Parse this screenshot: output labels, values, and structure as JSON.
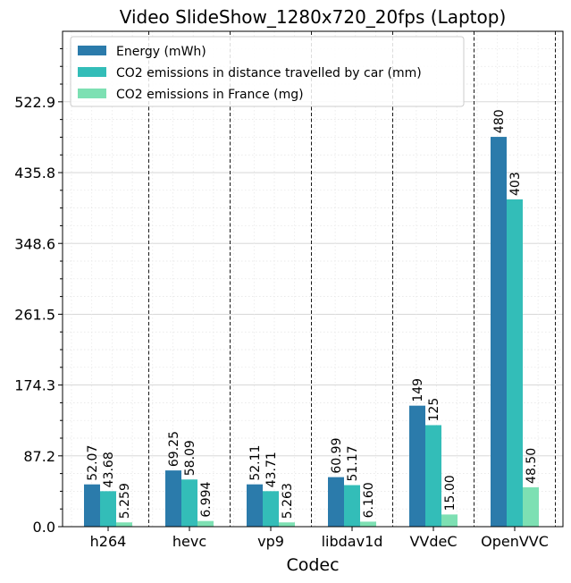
{
  "chart_data": {
    "type": "bar",
    "title": "Video SlideShow_1280x720_20fps (Laptop)",
    "xlabel": "Codec",
    "ylabel": "",
    "categories": [
      "h264",
      "hevc",
      "vp9",
      "libdav1d",
      "VVdeC",
      "OpenVVC"
    ],
    "series": [
      {
        "name": "Energy (mWh)",
        "color": "#2b7bab",
        "values": [
          52.07,
          69.25,
          52.11,
          60.99,
          149,
          480
        ],
        "labels": [
          "52.07",
          "69.25",
          "52.11",
          "60.99",
          "149",
          "480"
        ]
      },
      {
        "name": "CO2 emissions in distance travelled by car (mm)",
        "color": "#33bdb8",
        "values": [
          43.68,
          58.09,
          43.71,
          51.17,
          125,
          403
        ],
        "labels": [
          "43.68",
          "58.09",
          "43.71",
          "51.17",
          "125",
          "403"
        ]
      },
      {
        "name": "CO2 emissions in France (mg)",
        "color": "#7de0b3",
        "values": [
          5.259,
          6.994,
          5.263,
          6.16,
          15.0,
          48.5
        ],
        "labels": [
          "5.259",
          "6.994",
          "5.263",
          "6.160",
          "15.00",
          "48.50"
        ]
      }
    ],
    "yticks": [
      0.0,
      87.2,
      174.3,
      261.5,
      348.6,
      435.8,
      522.9
    ],
    "ytick_labels": [
      "0.0",
      "87.2",
      "174.3",
      "261.5",
      "348.6",
      "435.8",
      "522.9"
    ],
    "ylim": [
      0,
      610
    ],
    "grid": true,
    "legend_position": "top-left"
  }
}
